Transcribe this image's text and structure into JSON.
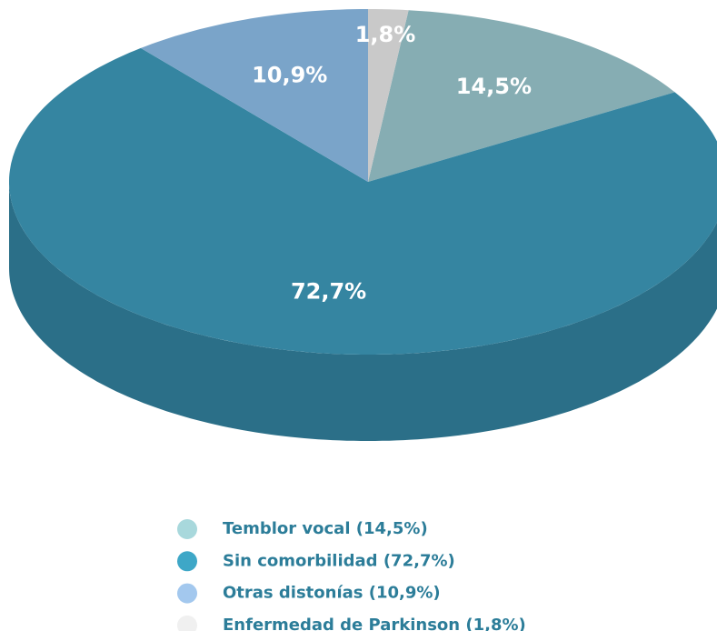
{
  "chart_data": {
    "type": "pie3d",
    "categories": [
      "Temblor vocal (14,5%)",
      "Sin comorbilidad (72,7%)",
      "Otras distonías (10,9%)",
      "Enfermedad de Parkinson (1,8%)"
    ],
    "values": [
      14.5,
      72.7,
      10.9,
      1.8
    ],
    "value_labels": [
      "14,5%",
      "72,7%",
      "10,9%",
      "1,8%"
    ],
    "colors": [
      "#86adb3",
      "#3585a1",
      "#7aa4c9",
      "#c9c9c9"
    ],
    "side_colors": [
      "#5f8589",
      "#2b6f88",
      "#5a7fa0",
      "#a0a0a0"
    ],
    "legend_colors": [
      "#a8d8dc",
      "#3ea7c7",
      "#a3c8ee",
      "#f0f0f0"
    ]
  }
}
